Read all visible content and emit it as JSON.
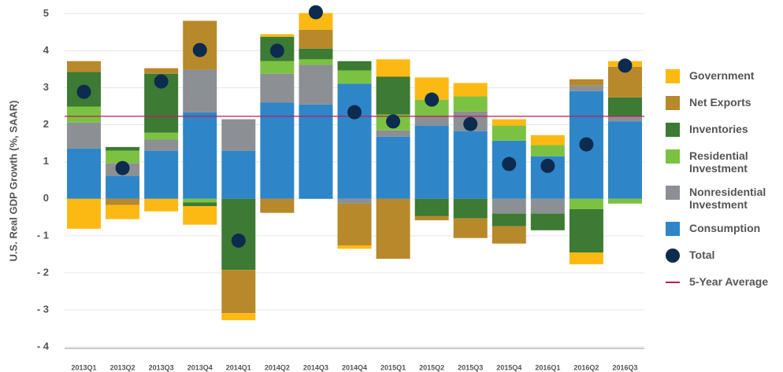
{
  "chart_data": {
    "type": "bar",
    "stacked": true,
    "y_label": "U.S. Real GDP Growth (%, SAAR)",
    "categories": [
      "2013Q1",
      "2013Q2",
      "2013Q3",
      "2013Q4",
      "2014Q1",
      "2014Q2",
      "2014Q3",
      "2014Q4",
      "2015Q1",
      "2015Q2",
      "2015Q3",
      "2015Q4",
      "2016Q1",
      "2016Q2",
      "2016Q3"
    ],
    "series": [
      {
        "name": "Consumption",
        "color": "#2e86c8",
        "values": [
          1.36,
          0.62,
          1.3,
          2.34,
          1.3,
          2.6,
          2.55,
          3.11,
          1.68,
          1.98,
          1.83,
          1.57,
          1.15,
          2.91,
          2.09
        ]
      },
      {
        "name": "Nonresidential Investment",
        "color": "#8c8f94",
        "values": [
          0.7,
          0.34,
          0.3,
          1.15,
          0.85,
          0.78,
          1.07,
          -0.13,
          0.17,
          0.25,
          0.53,
          -0.4,
          -0.4,
          0.15,
          0.14
        ]
      },
      {
        "name": "Residential Investment",
        "color": "#7cc242",
        "values": [
          0.43,
          0.34,
          0.19,
          -0.1,
          0,
          0.34,
          0.15,
          0.36,
          0.43,
          0.45,
          0.41,
          0.41,
          0.3,
          -0.28,
          -0.13
        ]
      },
      {
        "name": "Inventories",
        "color": "#3d7a34",
        "values": [
          0.94,
          0.1,
          1.59,
          -0.1,
          -1.92,
          0.66,
          0.29,
          0.25,
          1.02,
          -0.47,
          -0.53,
          -0.34,
          -0.45,
          -1.17,
          0.51
        ]
      },
      {
        "name": "Net Exports",
        "color": "#b8892a",
        "values": [
          0.29,
          -0.17,
          0.15,
          1.32,
          -1.17,
          -0.38,
          0.51,
          -1.13,
          -1.62,
          -0.11,
          -0.53,
          -0.47,
          0,
          0.17,
          0.83
        ]
      },
      {
        "name": "Government",
        "color": "#fdb913",
        "values": [
          -0.81,
          -0.38,
          -0.34,
          -0.5,
          -0.19,
          0.07,
          0.45,
          -0.09,
          0.47,
          0.6,
          0.36,
          0.17,
          0.27,
          -0.32,
          0.15
        ]
      }
    ],
    "total": {
      "name": "Total",
      "color": "#0d2b4e",
      "values": [
        2.89,
        0.83,
        3.17,
        4.02,
        -1.13,
        4.0,
        5.04,
        2.34,
        2.09,
        2.68,
        2.02,
        0.94,
        0.89,
        1.47,
        3.6
      ]
    },
    "average": {
      "name": "5-Year Average",
      "color": "#c2185b",
      "value": 2.23
    },
    "ylim": [
      -4,
      5
    ],
    "yticks": [
      {
        "value": -4,
        "label": "- 4"
      },
      {
        "value": -3,
        "label": "- 3"
      },
      {
        "value": -2,
        "label": "- 2"
      },
      {
        "value": -1,
        "label": "- 1"
      },
      0,
      1,
      2,
      3,
      4,
      5
    ],
    "grid": true
  }
}
